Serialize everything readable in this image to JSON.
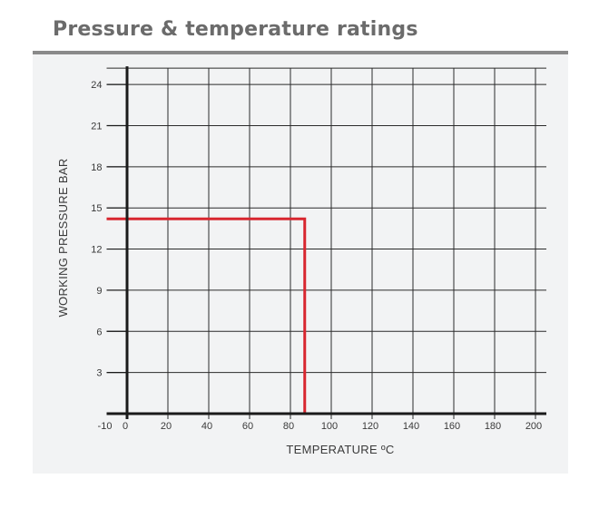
{
  "header": {
    "title": "Pressure & temperature ratings"
  },
  "chart_data": {
    "type": "line",
    "title": "Pressure & temperature ratings",
    "xlabel": "TEMPERATURE ºC",
    "ylabel": "WORKING PRESSURE BAR",
    "xlim": [
      -10,
      200
    ],
    "ylim": [
      0,
      24
    ],
    "x_ticks": [
      -10,
      0,
      20,
      40,
      60,
      80,
      100,
      120,
      140,
      160,
      180,
      200
    ],
    "y_ticks": [
      3,
      6,
      9,
      12,
      15,
      18,
      21,
      24
    ],
    "grid": true,
    "series": [
      {
        "color": "#d8262f",
        "x": [
          -10,
          87,
          87
        ],
        "y": [
          14.2,
          14.2,
          0
        ]
      }
    ],
    "colors": {
      "axis": "#1a1a1a",
      "grid": "#2b2b2b",
      "series": "#d8262f"
    }
  }
}
